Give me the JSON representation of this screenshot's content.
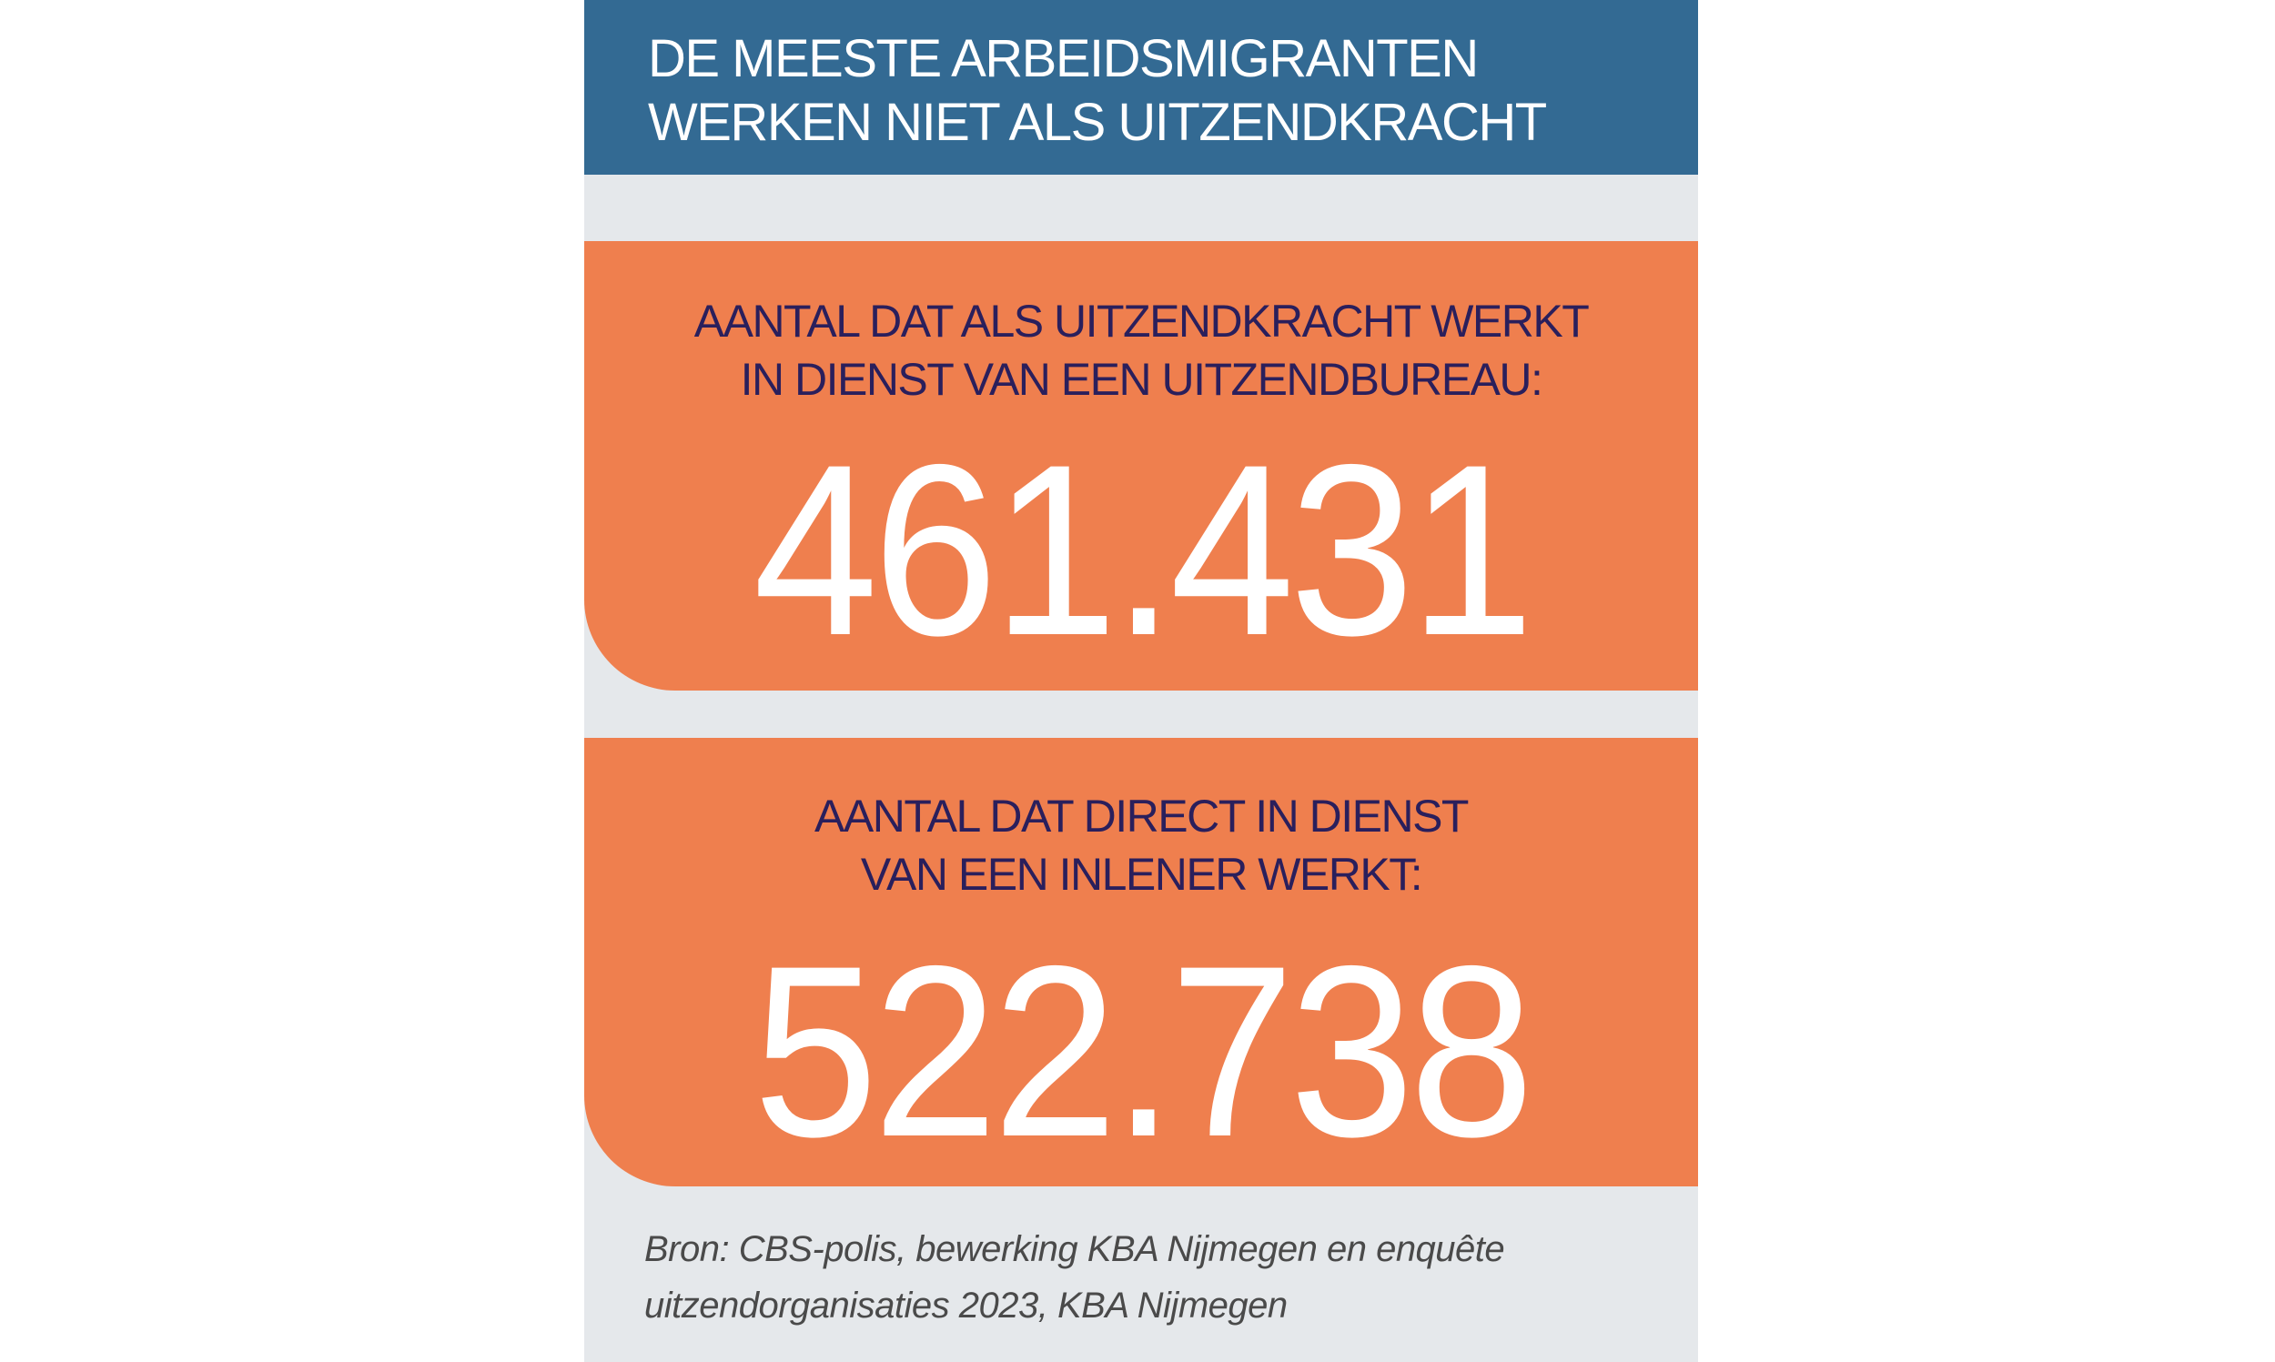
{
  "title": {
    "line1": "DE MEESTE ARBEIDSMIGRANTEN",
    "line2": "WERKEN NIET ALS UITZENDKRACHT"
  },
  "stats": [
    {
      "label_line1": "AANTAL DAT ALS UITZENDKRACHT WERKT",
      "label_line2": "IN DIENST VAN EEN UITZENDBUREAU:",
      "value": "461.431"
    },
    {
      "label_line1": "AANTAL DAT DIRECT IN DIENST",
      "label_line2": "VAN EEN INLENER WERKT:",
      "value": "522.738"
    }
  ],
  "source": {
    "line1": "Bron: CBS-polis, bewerking KBA Nijmegen en enquête",
    "line2": "uitzendorganisaties 2023, KBA Nijmegen"
  },
  "colors": {
    "header": "#336a93",
    "card": "#ef7f4e",
    "background": "#e5e8eb",
    "label_text": "#2a1f5c"
  }
}
